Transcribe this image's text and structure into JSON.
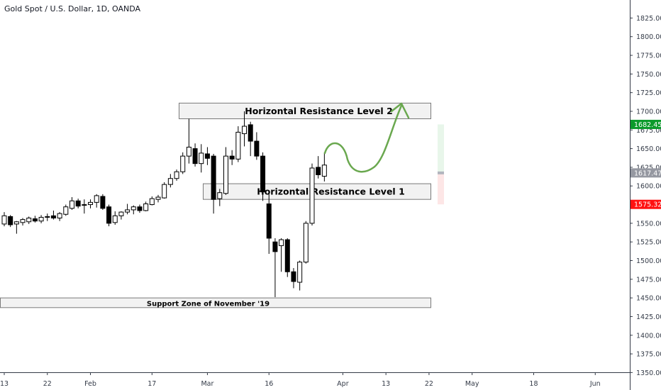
{
  "symbol_title": "Gold Spot / U.S. Dollar, 1D, OANDA",
  "colors": {
    "up_body": "#ffffff",
    "down_body": "#000000",
    "wick": "#000000",
    "zone_fill": "#f2f2f2",
    "zone_border": "#7a7a7a",
    "arrow": "#6aa84f",
    "tag_green": "#0b9a2b",
    "tag_gray": "#9598a1",
    "tag_red": "#ff1111",
    "range_green": "#e8f6ea",
    "range_red": "#fde6e6"
  },
  "chart_data": {
    "type": "candlestick",
    "title": "Gold Spot / U.S. Dollar, 1D, OANDA",
    "ylim": [
      1325,
      1835
    ],
    "y_ticks": [
      "1825.000",
      "1800.000",
      "1775.000",
      "1750.000",
      "1725.000",
      "1700.000",
      "1675.000",
      "1650.000",
      "1625.000",
      "1600.000",
      "1575.000",
      "1550.000",
      "1525.000",
      "1500.000",
      "1475.000",
      "1450.000",
      "1425.000",
      "1400.000",
      "1375.000",
      "1350.000"
    ],
    "x_ticks": [
      {
        "label": "13",
        "index": 0
      },
      {
        "label": "22",
        "index": 7
      },
      {
        "label": "Feb",
        "index": 14
      },
      {
        "label": "17",
        "index": 24
      },
      {
        "label": "Mar",
        "index": 33
      },
      {
        "label": "16",
        "index": 43
      },
      {
        "label": "Apr",
        "index": 55
      },
      {
        "label": "13",
        "index": 62
      },
      {
        "label": "22",
        "index": 69
      },
      {
        "label": "May",
        "index": 76
      },
      {
        "label": "18",
        "index": 86
      },
      {
        "label": "Jun",
        "index": 96
      }
    ],
    "candles": [
      {
        "o": 1549,
        "h": 1565,
        "l": 1546,
        "c": 1560
      },
      {
        "o": 1559,
        "h": 1561,
        "l": 1545,
        "c": 1548
      },
      {
        "o": 1549,
        "h": 1553,
        "l": 1536,
        "c": 1552
      },
      {
        "o": 1551,
        "h": 1557,
        "l": 1547,
        "c": 1555
      },
      {
        "o": 1552,
        "h": 1559,
        "l": 1549,
        "c": 1557
      },
      {
        "o": 1556,
        "h": 1560,
        "l": 1551,
        "c": 1553
      },
      {
        "o": 1553,
        "h": 1561,
        "l": 1550,
        "c": 1558
      },
      {
        "o": 1558,
        "h": 1563,
        "l": 1553,
        "c": 1559
      },
      {
        "o": 1560,
        "h": 1567,
        "l": 1555,
        "c": 1557
      },
      {
        "o": 1557,
        "h": 1565,
        "l": 1553,
        "c": 1563
      },
      {
        "o": 1562,
        "h": 1575,
        "l": 1560,
        "c": 1572
      },
      {
        "o": 1570,
        "h": 1585,
        "l": 1568,
        "c": 1580
      },
      {
        "o": 1580,
        "h": 1583,
        "l": 1570,
        "c": 1573
      },
      {
        "o": 1574,
        "h": 1582,
        "l": 1563,
        "c": 1575
      },
      {
        "o": 1575,
        "h": 1582,
        "l": 1570,
        "c": 1578
      },
      {
        "o": 1578,
        "h": 1589,
        "l": 1571,
        "c": 1587
      },
      {
        "o": 1586,
        "h": 1589,
        "l": 1568,
        "c": 1570
      },
      {
        "o": 1572,
        "h": 1575,
        "l": 1546,
        "c": 1550
      },
      {
        "o": 1551,
        "h": 1566,
        "l": 1548,
        "c": 1560
      },
      {
        "o": 1560,
        "h": 1566,
        "l": 1555,
        "c": 1565
      },
      {
        "o": 1565,
        "h": 1576,
        "l": 1562,
        "c": 1568
      },
      {
        "o": 1568,
        "h": 1574,
        "l": 1562,
        "c": 1572
      },
      {
        "o": 1572,
        "h": 1575,
        "l": 1564,
        "c": 1567
      },
      {
        "o": 1567,
        "h": 1579,
        "l": 1566,
        "c": 1576
      },
      {
        "o": 1575,
        "h": 1586,
        "l": 1574,
        "c": 1583
      },
      {
        "o": 1582,
        "h": 1588,
        "l": 1578,
        "c": 1585
      },
      {
        "o": 1584,
        "h": 1605,
        "l": 1583,
        "c": 1602
      },
      {
        "o": 1602,
        "h": 1616,
        "l": 1598,
        "c": 1610
      },
      {
        "o": 1610,
        "h": 1622,
        "l": 1607,
        "c": 1619
      },
      {
        "o": 1619,
        "h": 1645,
        "l": 1616,
        "c": 1640
      },
      {
        "o": 1640,
        "h": 1690,
        "l": 1630,
        "c": 1652
      },
      {
        "o": 1650,
        "h": 1657,
        "l": 1626,
        "c": 1630
      },
      {
        "o": 1630,
        "h": 1656,
        "l": 1618,
        "c": 1644
      },
      {
        "o": 1643,
        "h": 1652,
        "l": 1628,
        "c": 1637
      },
      {
        "o": 1640,
        "h": 1643,
        "l": 1563,
        "c": 1582
      },
      {
        "o": 1583,
        "h": 1596,
        "l": 1573,
        "c": 1591
      },
      {
        "o": 1590,
        "h": 1652,
        "l": 1588,
        "c": 1640
      },
      {
        "o": 1640,
        "h": 1648,
        "l": 1628,
        "c": 1636
      },
      {
        "o": 1636,
        "h": 1680,
        "l": 1632,
        "c": 1672
      },
      {
        "o": 1670,
        "h": 1700,
        "l": 1653,
        "c": 1680
      },
      {
        "o": 1682,
        "h": 1686,
        "l": 1640,
        "c": 1660
      },
      {
        "o": 1660,
        "h": 1672,
        "l": 1635,
        "c": 1640
      },
      {
        "o": 1640,
        "h": 1645,
        "l": 1580,
        "c": 1592
      },
      {
        "o": 1576,
        "h": 1590,
        "l": 1509,
        "c": 1530
      },
      {
        "o": 1525,
        "h": 1530,
        "l": 1451,
        "c": 1512
      },
      {
        "o": 1520,
        "h": 1530,
        "l": 1485,
        "c": 1528
      },
      {
        "o": 1528,
        "h": 1530,
        "l": 1478,
        "c": 1485
      },
      {
        "o": 1485,
        "h": 1490,
        "l": 1463,
        "c": 1472
      },
      {
        "o": 1471,
        "h": 1500,
        "l": 1460,
        "c": 1498
      },
      {
        "o": 1498,
        "h": 1553,
        "l": 1496,
        "c": 1550
      },
      {
        "o": 1550,
        "h": 1630,
        "l": 1547,
        "c": 1624
      },
      {
        "o": 1625,
        "h": 1640,
        "l": 1610,
        "c": 1615
      },
      {
        "o": 1613,
        "h": 1645,
        "l": 1606,
        "c": 1628
      }
    ],
    "annotations": [
      {
        "label": "Horizontal Resistance Level 2",
        "price_top": 1711,
        "price_bottom": 1690
      },
      {
        "label": "Horizontal Resistance Level 1",
        "price_top": 1603,
        "price_bottom": 1582
      },
      {
        "label": "Support Zone of November '19",
        "price_top": 1450,
        "price_bottom": 1437
      }
    ],
    "price_tags": [
      {
        "value": "1682.450",
        "role": "green"
      },
      {
        "value": "1617.477",
        "role": "gray"
      },
      {
        "value": "1575.322",
        "role": "red"
      }
    ]
  }
}
